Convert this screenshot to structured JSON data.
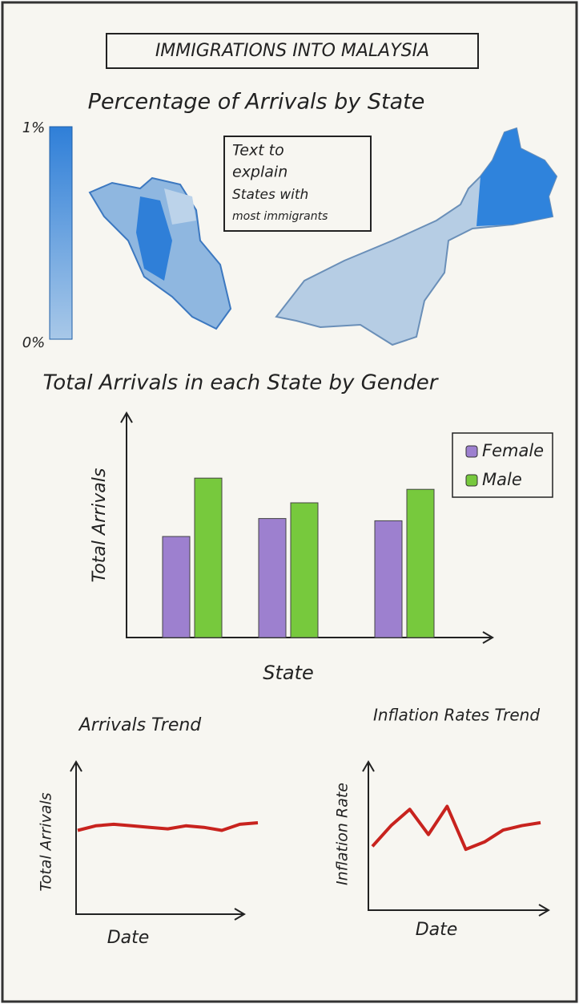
{
  "header": {
    "title": "IMMIGRATIONS INTO MALAYSIA"
  },
  "map_section": {
    "title": "Percentage of Arrivals by State",
    "colorbar": {
      "max_label": "1%",
      "min_label": "0%"
    },
    "note": [
      "Text to",
      "explain",
      "States with",
      "most immigrants"
    ]
  },
  "chart_data": [
    {
      "type": "bar",
      "title": "Total Arrivals in each State by Gender",
      "x_label": "State",
      "y_label": "Total Arrivals",
      "categories": [
        null,
        null,
        null
      ],
      "ylim": [
        0,
        100
      ],
      "legend": "top-right",
      "series": [
        {
          "name": "Female",
          "color": "#9d80cf",
          "values": [
            45,
            53,
            52
          ]
        },
        {
          "name": "Male",
          "color": "#77c93d",
          "values": [
            71,
            60,
            66
          ]
        }
      ]
    },
    {
      "type": "line",
      "title": "Arrivals Trend",
      "x_label": "Date",
      "y_label": "Total Arrivals",
      "color": "#c8231e",
      "ylim": [
        0,
        100
      ],
      "values": [
        55,
        58,
        59,
        58,
        57,
        56,
        58,
        57,
        55,
        59,
        60
      ]
    },
    {
      "type": "line",
      "title": "Inflation Rates Trend",
      "x_label": "Date",
      "y_label": "Inflation Rate",
      "color": "#c8231e",
      "ylim": [
        0,
        100
      ],
      "values": [
        43,
        57,
        68,
        51,
        70,
        41,
        46,
        54,
        57,
        59
      ]
    }
  ]
}
